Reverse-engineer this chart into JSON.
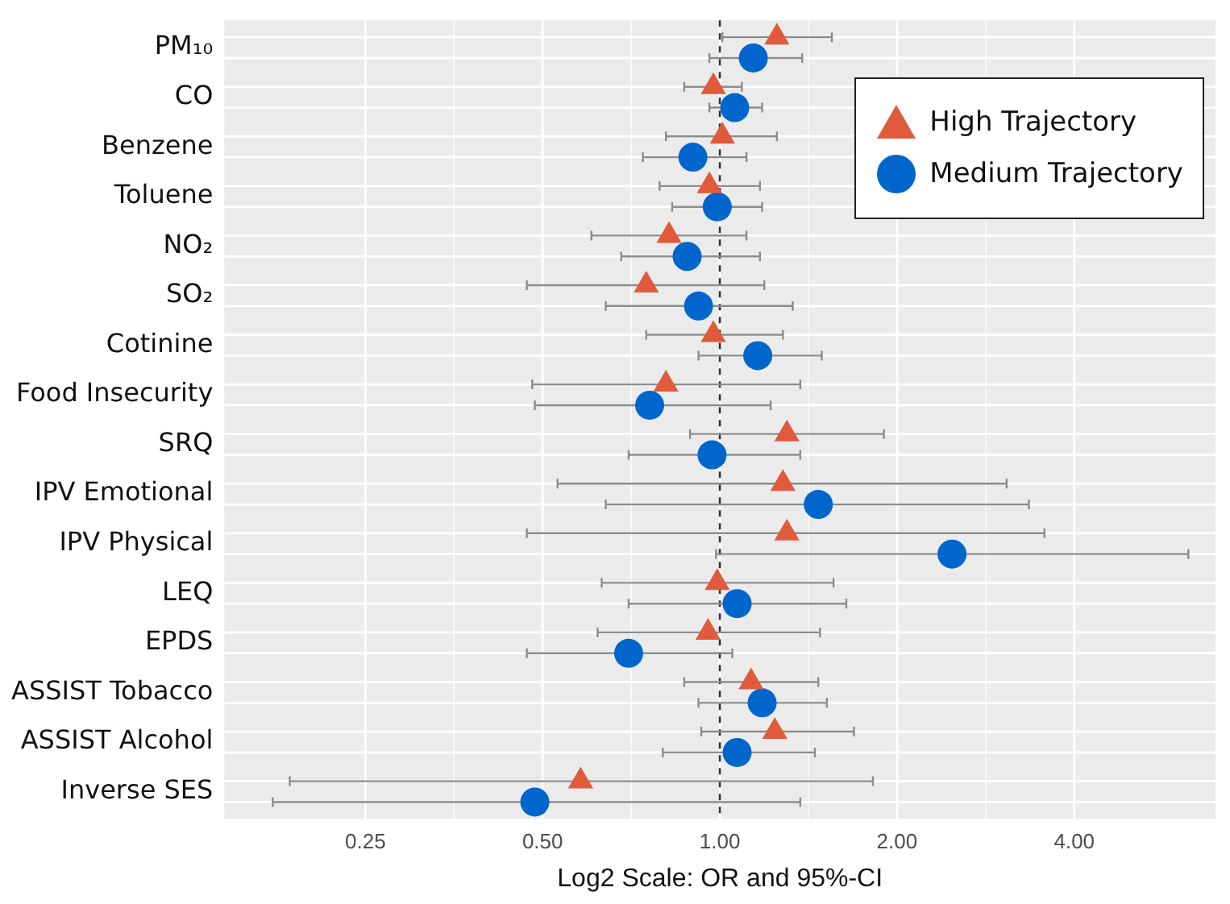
{
  "chart_data": {
    "type": "scatter",
    "orientation": "horizontal",
    "xlabel": "Log2 Scale: OR and 95%-CI",
    "log": "x",
    "grid": true,
    "legend": "top right",
    "categories": [
      "PM₁₀",
      "CO",
      "Benzene",
      "Toluene",
      "NO₂",
      "SO₂",
      "Cotinine",
      "Food Insecurity",
      "SRQ",
      "IPV Emotional",
      "IPV Physical",
      "LEQ",
      "EPDS",
      "ASSIST Tobacco",
      "ASSIST Alcohol",
      "Inverse SES"
    ],
    "xlim": [
      0.144,
      6.95
    ],
    "xticks": [
      {
        "value": 0.25,
        "label": "0.25"
      },
      {
        "value": 0.5,
        "label": "0.50"
      },
      {
        "value": 1,
        "label": "1.00"
      },
      {
        "value": 2,
        "label": "2.00"
      },
      {
        "value": 4,
        "label": "4.00"
      }
    ],
    "ref_lines": [
      {
        "axis": "x",
        "value": 1,
        "color": "#333333",
        "line_style": "dashed"
      }
    ],
    "series": [
      {
        "name": "High Trajectory",
        "color": "#e05a3c",
        "marker": "triangle",
        "values": [
          1.25,
          0.975,
          1.01,
          0.96,
          0.82,
          0.75,
          0.975,
          0.81,
          1.3,
          1.28,
          1.3,
          0.99,
          0.955,
          1.13,
          1.24,
          0.58
        ],
        "errors": [
          [
            1.01,
            1.55
          ],
          [
            0.87,
            1.09
          ],
          [
            0.81,
            1.25
          ],
          [
            0.79,
            1.17
          ],
          [
            0.605,
            1.11
          ],
          [
            0.47,
            1.19
          ],
          [
            0.75,
            1.28
          ],
          [
            0.48,
            1.37
          ],
          [
            0.89,
            1.9
          ],
          [
            0.53,
            3.07
          ],
          [
            0.47,
            3.56
          ],
          [
            0.63,
            1.56
          ],
          [
            0.62,
            1.48
          ],
          [
            0.87,
            1.47
          ],
          [
            0.93,
            1.69
          ],
          [
            0.186,
            1.82
          ]
        ]
      },
      {
        "name": "Medium Trajectory",
        "color": "#0066cc",
        "marker": "circle",
        "values": [
          1.14,
          1.06,
          0.9,
          0.99,
          0.88,
          0.92,
          1.16,
          0.76,
          0.97,
          1.47,
          2.48,
          1.07,
          0.7,
          1.18,
          1.07,
          0.485
        ],
        "errors": [
          [
            0.96,
            1.38
          ],
          [
            0.96,
            1.18
          ],
          [
            0.74,
            1.11
          ],
          [
            0.83,
            1.18
          ],
          [
            0.68,
            1.17
          ],
          [
            0.64,
            1.33
          ],
          [
            0.92,
            1.49
          ],
          [
            0.485,
            1.22
          ],
          [
            0.7,
            1.37
          ],
          [
            0.64,
            3.35
          ],
          [
            0.985,
            6.25
          ],
          [
            0.7,
            1.64
          ],
          [
            0.47,
            1.05
          ],
          [
            0.92,
            1.52
          ],
          [
            0.8,
            1.45
          ],
          [
            0.174,
            1.37
          ]
        ]
      }
    ]
  }
}
